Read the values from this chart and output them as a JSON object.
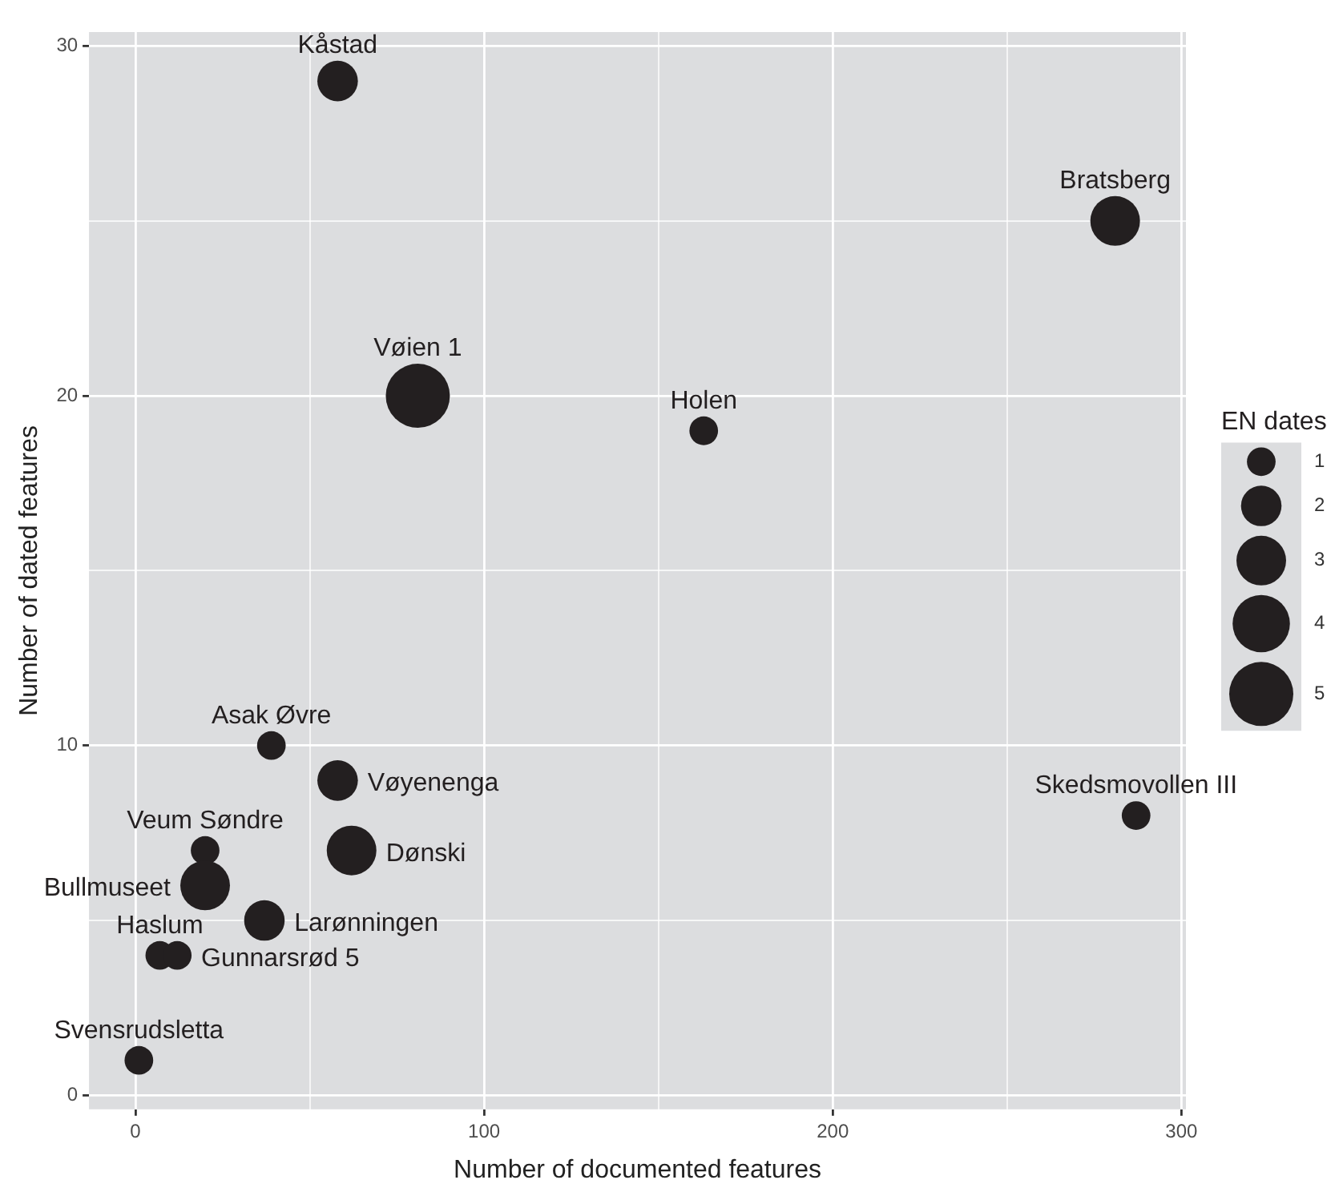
{
  "chart_data": {
    "type": "bubble",
    "xlabel": "Number of documented features",
    "ylabel": "Number of dated features",
    "legend_title": "EN dates",
    "x": [
      58,
      81,
      39,
      58,
      20,
      62,
      20,
      37,
      7,
      12,
      1,
      163,
      281,
      287
    ],
    "values": [
      29,
      20,
      10,
      9,
      7,
      7,
      6,
      5,
      4,
      4,
      1,
      19,
      25,
      8
    ],
    "sizes": [
      2,
      5,
      1,
      2,
      1,
      3,
      3,
      2,
      1,
      1,
      1,
      1,
      3,
      1
    ],
    "size_legend": [
      1,
      2,
      3,
      4,
      5
    ],
    "color": "#231f20",
    "annotations": [
      {
        "text": "Kåstad",
        "x": 58,
        "y": 29
      },
      {
        "text": "Vøien 1",
        "x": 81,
        "y": 20
      },
      {
        "text": "Asak Øvre",
        "x": 39,
        "y": 10
      },
      {
        "text": "Vøyenenga",
        "x": 58,
        "y": 9
      },
      {
        "text": "Veum Søndre",
        "x": 20,
        "y": 7
      },
      {
        "text": "Dønski",
        "x": 62,
        "y": 7
      },
      {
        "text": "Bullmuseet",
        "x": 20,
        "y": 6
      },
      {
        "text": "Larønningen",
        "x": 37,
        "y": 5
      },
      {
        "text": "Haslum",
        "x": 7,
        "y": 4
      },
      {
        "text": "Gunnarsrød 5",
        "x": 12,
        "y": 4
      },
      {
        "text": "Svensrudsletta",
        "x": 1,
        "y": 1
      },
      {
        "text": "Holen",
        "x": 163,
        "y": 19
      },
      {
        "text": "Bratsberg",
        "x": 281,
        "y": 25
      },
      {
        "text": "Skedsmovollen III",
        "x": 287,
        "y": 8
      }
    ],
    "xlim": [
      -13.3,
      301.3
    ],
    "xticks": [
      0,
      {
        "value": 50,
        "label": null
      },
      100,
      {
        "value": 150,
        "label": null
      },
      200,
      {
        "value": 250,
        "label": null
      },
      300
    ],
    "ylim": [
      -0.4,
      30.4
    ],
    "yticks": [
      0,
      {
        "value": 5,
        "label": null
      },
      10,
      {
        "value": 15,
        "label": null
      },
      20,
      {
        "value": 25,
        "label": null
      },
      30
    ],
    "grid": true
  }
}
